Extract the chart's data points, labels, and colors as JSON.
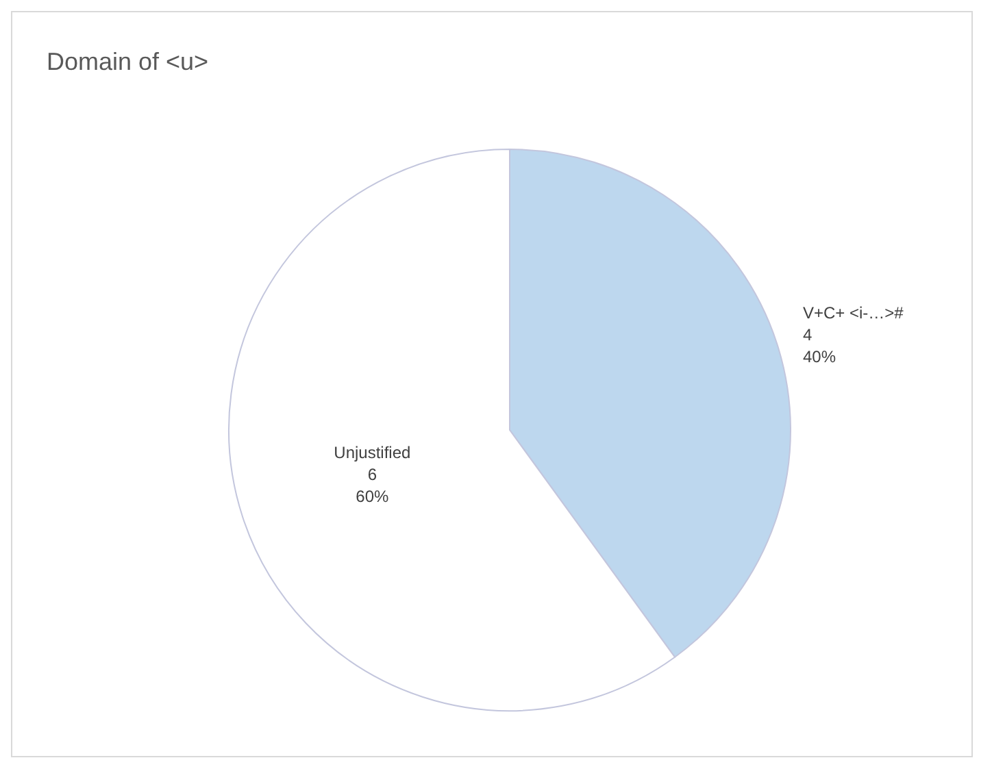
{
  "chart_data": {
    "type": "pie",
    "title": "Domain of <u>",
    "categories": [
      "V+C+ <i-…>#",
      "Unjustified"
    ],
    "values": [
      40,
      60
    ],
    "colors": [
      "#bdd7ee",
      "#ffffff"
    ],
    "value_labels": [
      "4\n40%",
      "6\n60%"
    ],
    "legend": false
  }
}
